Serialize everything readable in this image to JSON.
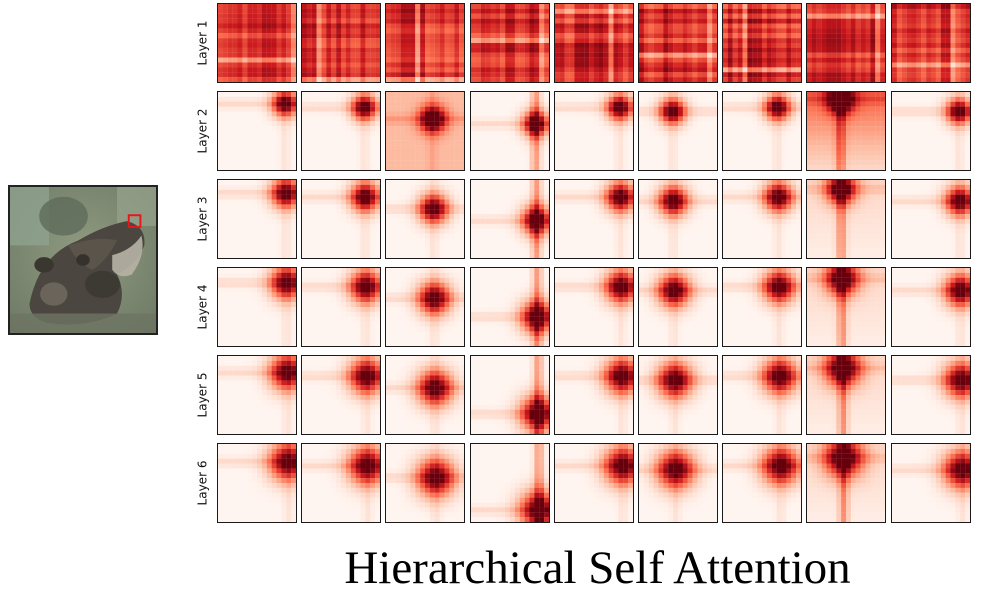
{
  "caption": "Hierarchical Self Attention",
  "colors": {
    "attention_low": "#fff5f0",
    "attention_mid": "#ef3b2c",
    "attention_high": "#67000d",
    "query_marker": "#e8161b"
  },
  "input_image": {
    "query_marker_color": "#e8161b"
  },
  "rows": [
    {
      "label": "Layer 1"
    },
    {
      "label": "Layer 2"
    },
    {
      "label": "Layer 3"
    },
    {
      "label": "Layer 4"
    },
    {
      "label": "Layer 5"
    },
    {
      "label": "Layer 6"
    }
  ],
  "columns": 9
}
